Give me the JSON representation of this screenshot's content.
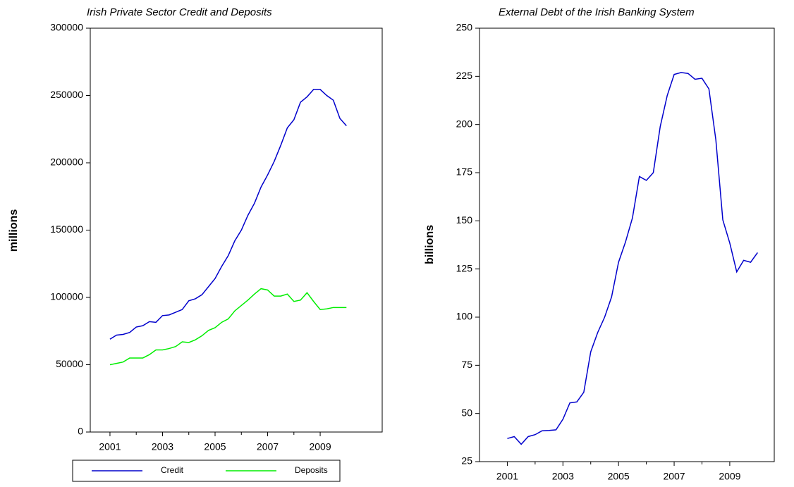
{
  "chart_data": [
    {
      "type": "line",
      "title": "Irish Private Sector Credit and Deposits",
      "y_label": "millions",
      "x": [
        2001,
        2001.25,
        2001.5,
        2001.75,
        2002,
        2002.25,
        2002.5,
        2002.75,
        2003,
        2003.25,
        2003.5,
        2003.75,
        2004,
        2004.25,
        2004.5,
        2004.75,
        2005,
        2005.25,
        2005.5,
        2005.75,
        2006,
        2006.25,
        2006.5,
        2006.75,
        2007,
        2007.25,
        2007.5,
        2007.75,
        2008,
        2008.25,
        2008.5,
        2008.75,
        2009,
        2009.25,
        2009.5,
        2009.75,
        2010
      ],
      "series": [
        {
          "name": "Credit",
          "color": "#0000cc",
          "values": [
            69000,
            72000,
            72500,
            74000,
            78000,
            79000,
            82000,
            81500,
            86500,
            87000,
            89000,
            91000,
            97500,
            99000,
            102000,
            108000,
            114000,
            123000,
            131000,
            142000,
            150000,
            161000,
            170000,
            182000,
            191000,
            201000,
            213000,
            226000,
            232000,
            245000,
            249000,
            254500,
            254500,
            250000,
            246500,
            233000,
            227500
          ]
        },
        {
          "name": "Deposits",
          "color": "#00ee00",
          "values": [
            50000,
            51000,
            52000,
            55000,
            55000,
            55000,
            57500,
            61000,
            61000,
            62000,
            63500,
            67000,
            66500,
            68500,
            71500,
            75500,
            77500,
            81500,
            84000,
            90000,
            94000,
            98000,
            102500,
            106500,
            105500,
            101000,
            101000,
            102500,
            97000,
            98000,
            103500,
            97000,
            91000,
            91500,
            92500,
            92500,
            92500
          ]
        }
      ],
      "xlim": [
        2000.25,
        2011.36
      ],
      "xticks": [
        2001,
        2003,
        2005,
        2007,
        2009
      ],
      "ylim": [
        0,
        300000
      ],
      "yticks": [
        0,
        50000,
        100000,
        150000,
        200000,
        250000,
        300000
      ],
      "legend": "bottom"
    },
    {
      "type": "line",
      "title": "External Debt of the Irish Banking System",
      "y_label": "billions",
      "x": [
        2001,
        2001.25,
        2001.5,
        2001.75,
        2002,
        2002.25,
        2002.5,
        2002.75,
        2003,
        2003.25,
        2003.5,
        2003.75,
        2004,
        2004.25,
        2004.5,
        2004.75,
        2005,
        2005.25,
        2005.5,
        2005.75,
        2006,
        2006.25,
        2006.5,
        2006.75,
        2007,
        2007.25,
        2007.5,
        2007.75,
        2008,
        2008.25,
        2008.5,
        2008.75,
        2009,
        2009.25,
        2009.5,
        2009.75,
        2010
      ],
      "series": [
        {
          "name": "External Debt",
          "color": "#0000cc",
          "values": [
            37,
            38,
            34,
            38,
            39,
            41,
            41.2,
            41.5,
            47,
            55.5,
            56,
            61,
            82,
            92,
            100,
            110.5,
            128.5,
            139,
            151.5,
            173,
            171,
            175,
            199,
            215,
            226,
            227,
            226.5,
            223.5,
            224,
            218.5,
            192,
            150.5,
            138.5,
            123.5,
            129.5,
            128.5,
            133.5
          ]
        }
      ],
      "xlim": [
        2000,
        2010.6
      ],
      "xticks": [
        2001,
        2003,
        2005,
        2007,
        2009
      ],
      "ylim": [
        25,
        250
      ],
      "yticks": [
        25,
        50,
        75,
        100,
        125,
        150,
        175,
        200,
        225,
        250
      ]
    }
  ]
}
